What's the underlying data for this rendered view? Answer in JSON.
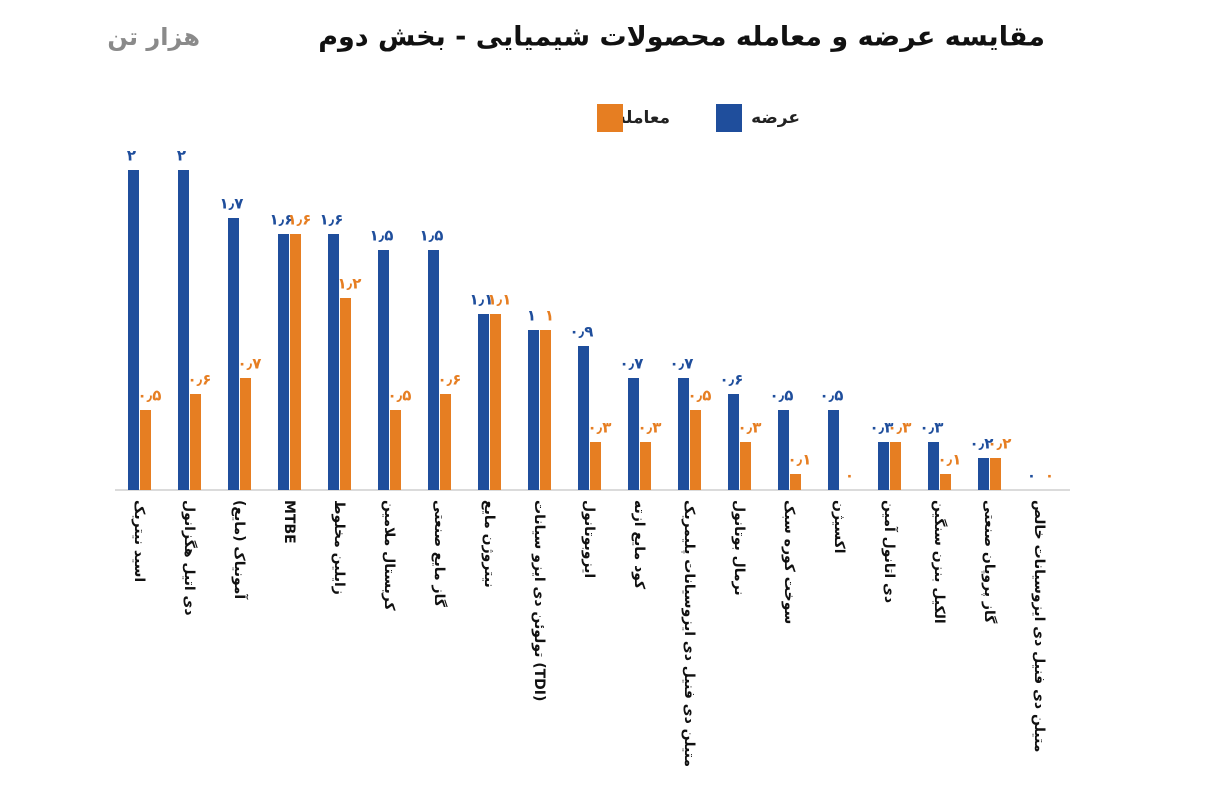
{
  "chart_data": {
    "type": "bar",
    "title": "مقایسه عرضه و معامله محصولات شیمیایی - بخش دوم",
    "unit_label": "هزار تن",
    "categories": [
      "اسید نیتریک",
      "دی اتیل هگزانول",
      "آمونیاک (مایع)",
      "MTBE",
      "زایلین مخلوط",
      "کریستال ملامین",
      "گاز مایع صنعتی",
      "نیتروژن مایع",
      "تولوئن دی ایزو سیانات (TDI)",
      "ایزوبوتانول",
      "کود مایع ازته",
      "متیلن دی فنیل دی ایزوسیانات پلیمریک",
      "نرمال بوتانول",
      "سوخت کوره سبک",
      "اکسیژن",
      "دی اتانول آمین",
      "الکیل بنزن سنگین",
      "گاز پروپان صنعتی",
      "متیلن دی فنیل دی ایزوسیانات خالص"
    ],
    "series": [
      {
        "name": "عرضه",
        "color": "#1f4e9c",
        "values": [
          2,
          2,
          1.7,
          1.6,
          1.6,
          1.5,
          1.5,
          1.1,
          1,
          0.9,
          0.7,
          0.7,
          0.6,
          0.5,
          0.5,
          0.3,
          0.3,
          0.2,
          0
        ],
        "value_labels": [
          "۲",
          "۲",
          "۱٫۷",
          "۱٫۶",
          "۱٫۶",
          "۱٫۵",
          "۱٫۵",
          "۱٫۱",
          "۱",
          "۰٫۹",
          "۰٫۷",
          "۰٫۷",
          "۰٫۶",
          "۰٫۵",
          "۰٫۵",
          "۰٫۳",
          "۰٫۳",
          "۰٫۲",
          "۰"
        ]
      },
      {
        "name": "معامله",
        "color": "#e67e22",
        "values": [
          0.5,
          0.6,
          0.7,
          1.6,
          1.2,
          0.5,
          0.6,
          1.1,
          1,
          0.3,
          0.3,
          0.5,
          0.3,
          0.1,
          0,
          0.3,
          0.1,
          0.2,
          0
        ],
        "value_labels": [
          "۰٫۵",
          "۰٫۶",
          "۰٫۷",
          "۱٫۶",
          "۱٫۲",
          "۰٫۵",
          "۰٫۶",
          "۱٫۱",
          "۱",
          "۰٫۳",
          "۰٫۳",
          "۰٫۵",
          "۰٫۳",
          "۰٫۱",
          "۰",
          "۰٫۳",
          "۰٫۱",
          "۰٫۲",
          "۰"
        ]
      }
    ],
    "ylim": [
      0,
      2
    ],
    "grid": false,
    "legend": "top"
  }
}
